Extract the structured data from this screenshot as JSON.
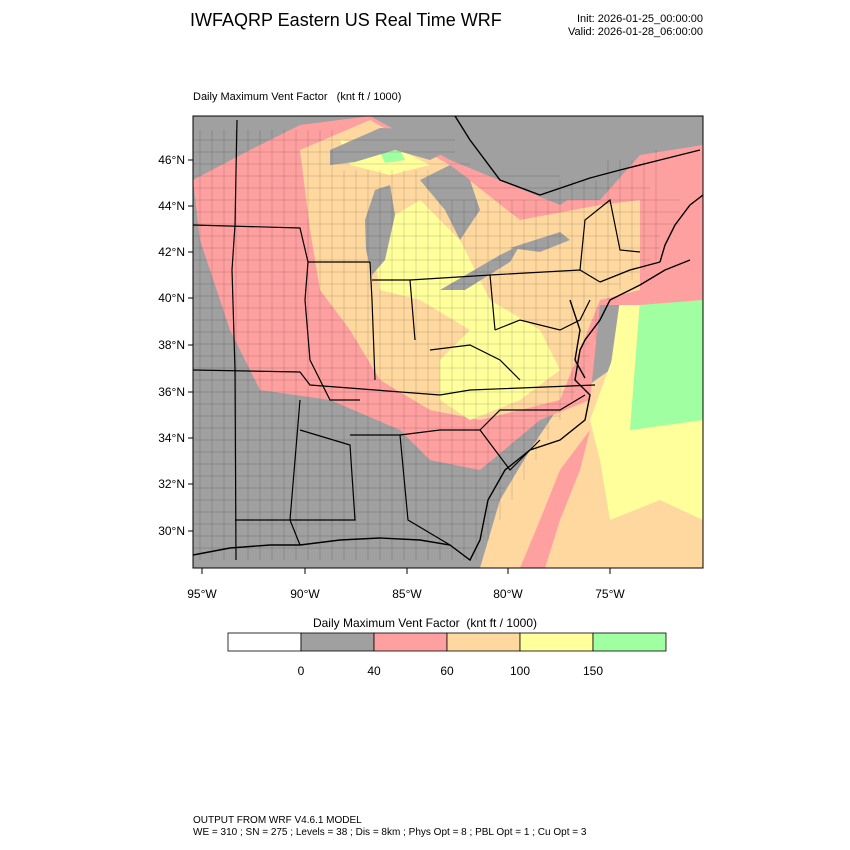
{
  "header": {
    "title": "IWFAQRP Eastern US Real Time WRF",
    "init": "Init: 2026-01-25_00:00:00",
    "valid": "Valid: 2026-01-28_06:00:00"
  },
  "field": {
    "name": "Daily Maximum Vent Factor",
    "units": "(knt ft / 1000)",
    "label": "Daily Maximum Vent Factor   (knt ft / 1000)"
  },
  "map": {
    "lat_labels": [
      "46°N",
      "44°N",
      "42°N",
      "40°N",
      "38°N",
      "36°N",
      "34°N",
      "32°N",
      "30°N"
    ],
    "lon_labels": [
      "95°W",
      "90°W",
      "85°W",
      "80°W",
      "75°W"
    ]
  },
  "colorbar": {
    "title": "Daily Maximum Vent Factor  (knt ft / 1000)",
    "tick_labels": [
      "0",
      "40",
      "60",
      "100",
      "150"
    ],
    "colors": [
      "#ffffff",
      "#a0a0a0",
      "#ffa0a0",
      "#ffd8a0",
      "#ffff9c",
      "#a0ffa0"
    ]
  },
  "footer": {
    "line1": "OUTPUT FROM WRF V4.6.1 MODEL",
    "line2": "WE = 310 ; SN = 275 ; Levels = 38 ; Dis = 8km ; Phys Opt = 8 ; PBL Opt = 1 ; Cu Opt = 3"
  }
}
